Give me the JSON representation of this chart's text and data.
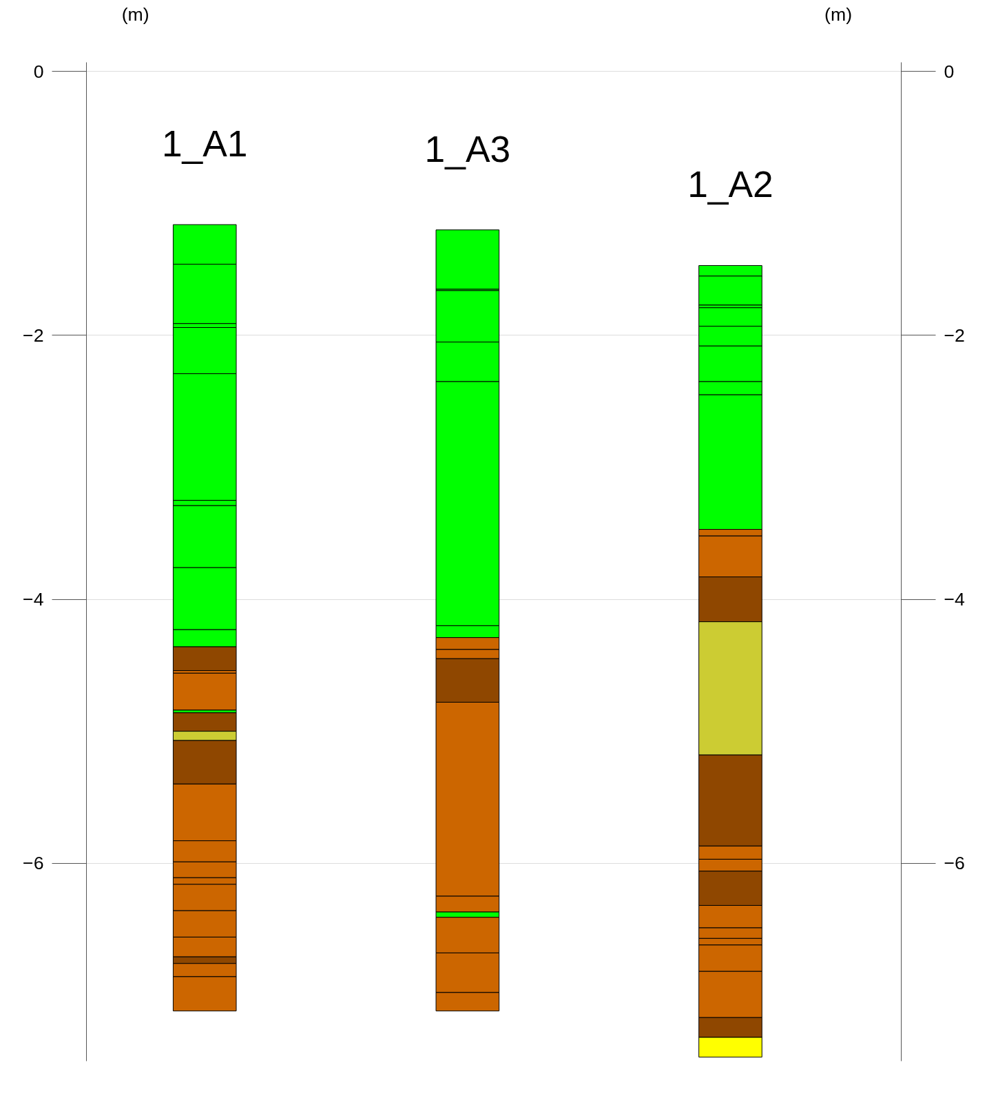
{
  "chart_data": {
    "type": "bar",
    "categories": [
      "1_A1",
      "1_A3",
      "1_A2"
    ],
    "ylabel": "(m)",
    "y2label": "(m)",
    "ylim": [
      -7.5,
      0.07
    ],
    "yticks": [
      0,
      -2,
      -4,
      -6
    ],
    "y2lim": [
      -7.5,
      0.07
    ],
    "y2ticks": [
      0,
      -2,
      -4,
      -6
    ],
    "grid": "y",
    "series": [
      {
        "base": [
          -1.16,
          -1.2,
          -1.47
        ],
        "values": [
          -0.3,
          -0.45,
          -0.08
        ],
        "colors": [
          "#00ff00",
          "#00ff00",
          "#00ff00"
        ]
      },
      {
        "base": [
          -1.46,
          -1.65,
          -1.55
        ],
        "values": [
          -0.45,
          -0.01,
          -0.22
        ],
        "colors": [
          "#00ff00",
          "#00ff00",
          "#00ff00"
        ]
      },
      {
        "base": [
          -1.91,
          -1.66,
          -1.77
        ],
        "values": [
          -0.03,
          -0.39,
          -0.02
        ],
        "colors": [
          "#00ff00",
          "#00ff00",
          "#00ff00"
        ]
      },
      {
        "base": [
          -1.94,
          -2.05,
          -1.79
        ],
        "values": [
          -0.35,
          -0.3,
          -0.14
        ],
        "colors": [
          "#00ff00",
          "#00ff00",
          "#00ff00"
        ]
      },
      {
        "base": [
          -2.29,
          -2.35,
          -1.93
        ],
        "values": [
          -0.96,
          -1.85,
          -0.15
        ],
        "colors": [
          "#00ff00",
          "#00ff00",
          "#00ff00"
        ]
      },
      {
        "base": [
          -3.25,
          -4.2,
          -2.08
        ],
        "values": [
          -0.04,
          -0.09,
          -0.27
        ],
        "colors": [
          "#00ff00",
          "#00ff00",
          "#00ff00"
        ]
      },
      {
        "base": [
          -3.29,
          -4.29,
          -2.35
        ],
        "values": [
          -0.47,
          -0.09,
          -0.1
        ],
        "colors": [
          "#00ff00",
          "#cc6600",
          "#00ff00"
        ]
      },
      {
        "base": [
          -3.76,
          -4.38,
          -2.45
        ],
        "values": [
          -0.47,
          -0.07,
          -1.02
        ],
        "colors": [
          "#00ff00",
          "#cc6600",
          "#00ff00"
        ]
      },
      {
        "base": [
          -4.23,
          -4.45,
          -3.47
        ],
        "values": [
          -0.13,
          -0.33,
          -0.05
        ],
        "colors": [
          "#00ff00",
          "#8f4700",
          "#cc6600"
        ]
      },
      {
        "base": [
          -4.36,
          -4.78,
          -3.52
        ],
        "values": [
          -0.18,
          -1.47,
          -0.31
        ],
        "colors": [
          "#8f4700",
          "#cc6600",
          "#cc6600"
        ]
      },
      {
        "base": [
          -4.54,
          -6.25,
          -3.83
        ],
        "values": [
          -0.02,
          -0.12,
          -0.34
        ],
        "colors": [
          "#cc6600",
          "#cc6600",
          "#8f4700"
        ]
      },
      {
        "base": [
          -4.56,
          -6.37,
          -4.17
        ],
        "values": [
          -0.28,
          -0.04,
          -1.01
        ],
        "colors": [
          "#cc6600",
          "#00ff00",
          "#cccc33"
        ]
      },
      {
        "base": [
          -4.84,
          -6.41,
          -5.18
        ],
        "values": [
          -0.02,
          -0.27,
          -0.69
        ],
        "colors": [
          "#00ff00",
          "#cc6600",
          "#8f4700"
        ]
      },
      {
        "base": [
          -4.86,
          -6.68,
          -5.87
        ],
        "values": [
          -0.14,
          -0.3,
          -0.1
        ],
        "colors": [
          "#8f4700",
          "#cc6600",
          "#cc6600"
        ]
      },
      {
        "base": [
          -5.0,
          -6.98,
          -5.97
        ],
        "values": [
          -0.07,
          -0.14,
          -0.09
        ],
        "colors": [
          "#cccc33",
          "#cc6600",
          "#cc6600"
        ]
      },
      {
        "base": [
          -5.07,
          null,
          -6.06
        ],
        "values": [
          -0.33,
          null,
          -0.26
        ],
        "colors": [
          "#8f4700",
          null,
          "#8f4700"
        ]
      },
      {
        "base": [
          -5.4,
          null,
          -6.32
        ],
        "values": [
          -0.43,
          null,
          -0.17
        ],
        "colors": [
          "#cc6600",
          null,
          "#cc6600"
        ]
      },
      {
        "base": [
          -5.83,
          null,
          -6.49
        ],
        "values": [
          -0.16,
          null,
          -0.08
        ],
        "colors": [
          "#cc6600",
          null,
          "#cc6600"
        ]
      },
      {
        "base": [
          -5.99,
          null,
          -6.57
        ],
        "values": [
          -0.12,
          null,
          -0.05
        ],
        "colors": [
          "#cc6600",
          null,
          "#cc6600"
        ]
      },
      {
        "base": [
          -6.11,
          null,
          -6.62
        ],
        "values": [
          -0.05,
          null,
          -0.2
        ],
        "colors": [
          "#cc6600",
          null,
          "#cc6600"
        ]
      },
      {
        "base": [
          -6.16,
          null,
          -6.82
        ],
        "values": [
          -0.2,
          null,
          -0.35
        ],
        "colors": [
          "#cc6600",
          null,
          "#cc6600"
        ]
      },
      {
        "base": [
          -6.36,
          null,
          -7.17
        ],
        "values": [
          -0.2,
          null,
          -0.15
        ],
        "colors": [
          "#cc6600",
          null,
          "#8f4700"
        ]
      },
      {
        "base": [
          -6.56,
          null,
          -7.32
        ],
        "values": [
          -0.15,
          null,
          -0.15
        ],
        "colors": [
          "#cc6600",
          null,
          "#ffff00"
        ]
      },
      {
        "base": [
          -6.71,
          null,
          null
        ],
        "values": [
          -0.05,
          null,
          null
        ],
        "colors": [
          "#8f4700",
          null,
          null
        ]
      },
      {
        "base": [
          -6.76,
          null,
          null
        ],
        "values": [
          -0.1,
          null,
          null
        ],
        "colors": [
          "#cc6600",
          null,
          null
        ]
      },
      {
        "base": [
          -6.86,
          null,
          null
        ],
        "values": [
          -0.26,
          null,
          null
        ],
        "colors": [
          "#cc6600",
          null,
          null
        ]
      }
    ]
  }
}
